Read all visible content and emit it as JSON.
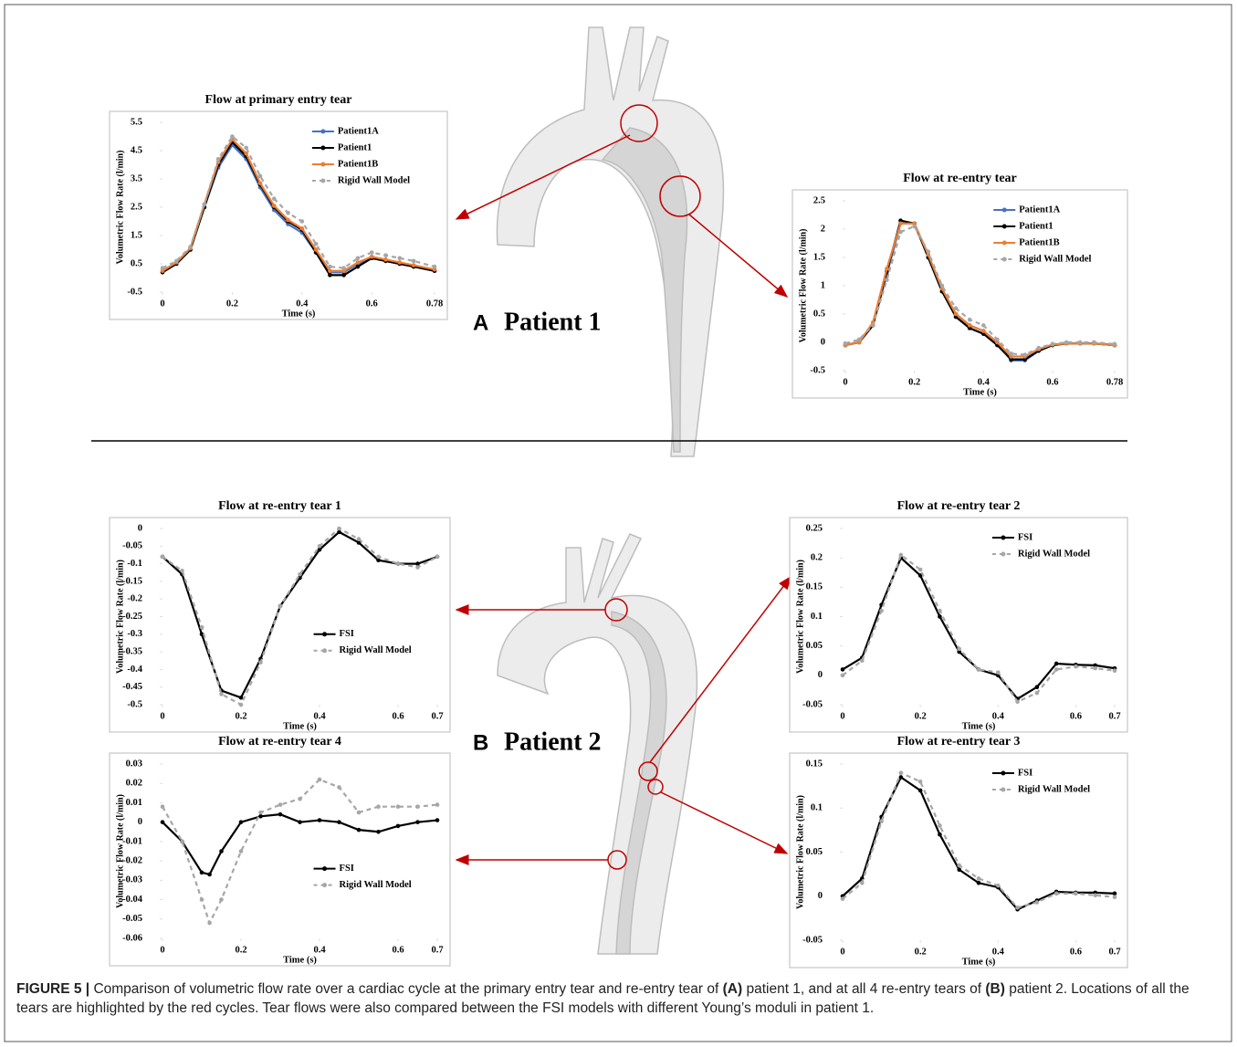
{
  "chart_data": [
    {
      "type": "line",
      "title": "Flow at primary entry tear",
      "xlabel": "Time (s)",
      "ylabel": "Volumetric Flow Rate (l/min)",
      "x": [
        0,
        0.04,
        0.08,
        0.12,
        0.16,
        0.2,
        0.24,
        0.28,
        0.32,
        0.36,
        0.4,
        0.44,
        0.48,
        0.52,
        0.56,
        0.6,
        0.64,
        0.68,
        0.72,
        0.78
      ],
      "series": [
        {
          "name": "Patient1A",
          "color": "#4472c4",
          "dashed": false,
          "values": [
            0.2,
            0.5,
            1.0,
            2.5,
            3.9,
            4.7,
            4.2,
            3.2,
            2.4,
            1.9,
            1.6,
            0.9,
            0.2,
            0.2,
            0.5,
            0.7,
            0.6,
            0.5,
            0.4,
            0.25
          ]
        },
        {
          "name": "Patient1",
          "color": "#000000",
          "dashed": false,
          "values": [
            0.2,
            0.5,
            1.0,
            2.5,
            4.0,
            4.8,
            4.3,
            3.3,
            2.5,
            2.0,
            1.7,
            0.9,
            0.1,
            0.1,
            0.4,
            0.7,
            0.6,
            0.5,
            0.4,
            0.25
          ]
        },
        {
          "name": "Patient1B",
          "color": "#ed7d31",
          "dashed": false,
          "values": [
            0.25,
            0.55,
            1.05,
            2.6,
            4.1,
            4.9,
            4.4,
            3.35,
            2.55,
            2.05,
            1.75,
            1.0,
            0.25,
            0.25,
            0.55,
            0.75,
            0.65,
            0.55,
            0.45,
            0.3
          ]
        },
        {
          "name": "Rigid Wall Model",
          "color": "#a6a6a6",
          "dashed": true,
          "values": [
            0.35,
            0.6,
            1.1,
            2.6,
            4.2,
            5.0,
            4.6,
            3.6,
            2.8,
            2.3,
            2.0,
            1.2,
            0.4,
            0.35,
            0.7,
            0.9,
            0.8,
            0.7,
            0.6,
            0.4
          ]
        }
      ],
      "xlim": [
        0,
        0.78
      ],
      "xticks": [
        0,
        0.2,
        0.4,
        0.6,
        0.78
      ],
      "ylim": [
        -0.5,
        5.5
      ],
      "yticks": [
        -0.5,
        0.5,
        1.5,
        2.5,
        3.5,
        4.5,
        5.5
      ],
      "legend": "upper right"
    },
    {
      "type": "line",
      "title": "Flow at re-entry tear",
      "xlabel": "Time (s)",
      "ylabel": "Volumetric Flow Rate (l/min)",
      "x": [
        0,
        0.04,
        0.08,
        0.12,
        0.16,
        0.2,
        0.24,
        0.28,
        0.32,
        0.36,
        0.4,
        0.44,
        0.48,
        0.52,
        0.56,
        0.6,
        0.64,
        0.68,
        0.72,
        0.78
      ],
      "series": [
        {
          "name": "Patient1A",
          "color": "#4472c4",
          "dashed": false,
          "values": [
            -0.05,
            0.0,
            0.3,
            1.2,
            2.1,
            2.1,
            1.5,
            0.9,
            0.5,
            0.3,
            0.2,
            0.0,
            -0.32,
            -0.32,
            -0.15,
            -0.05,
            -0.02,
            -0.02,
            -0.02,
            -0.05
          ]
        },
        {
          "name": "Patient1",
          "color": "#000000",
          "dashed": false,
          "values": [
            -0.05,
            0.0,
            0.3,
            1.25,
            2.15,
            2.1,
            1.5,
            0.9,
            0.45,
            0.25,
            0.15,
            -0.05,
            -0.3,
            -0.3,
            -0.15,
            -0.05,
            -0.02,
            -0.02,
            -0.02,
            -0.05
          ]
        },
        {
          "name": "Patient1B",
          "color": "#ed7d31",
          "dashed": false,
          "values": [
            -0.05,
            0.0,
            0.35,
            1.3,
            2.1,
            2.1,
            1.55,
            0.95,
            0.5,
            0.3,
            0.2,
            0.0,
            -0.25,
            -0.25,
            -0.12,
            -0.04,
            -0.02,
            -0.02,
            -0.02,
            -0.05
          ]
        },
        {
          "name": "Rigid Wall Model",
          "color": "#a6a6a6",
          "dashed": true,
          "values": [
            -0.02,
            0.05,
            0.3,
            1.1,
            1.95,
            2.05,
            1.6,
            1.0,
            0.6,
            0.4,
            0.3,
            0.05,
            -0.2,
            -0.22,
            -0.1,
            -0.03,
            0.0,
            0.0,
            0.0,
            -0.03
          ]
        }
      ],
      "xlim": [
        0,
        0.78
      ],
      "xticks": [
        0,
        0.2,
        0.4,
        0.6,
        0.78
      ],
      "ylim": [
        -0.5,
        2.5
      ],
      "yticks": [
        -0.5,
        0,
        0.5,
        1,
        1.5,
        2,
        2.5
      ],
      "legend": "upper right"
    },
    {
      "type": "line",
      "title": "Flow at re-entry tear 1",
      "xlabel": "Time (s)",
      "ylabel": "Volumetric Flow Rate (l/min)",
      "x": [
        0,
        0.05,
        0.1,
        0.15,
        0.2,
        0.25,
        0.3,
        0.35,
        0.4,
        0.45,
        0.5,
        0.55,
        0.6,
        0.65,
        0.7
      ],
      "series": [
        {
          "name": "FSI",
          "color": "#000000",
          "dashed": false,
          "values": [
            -0.08,
            -0.13,
            -0.3,
            -0.46,
            -0.48,
            -0.37,
            -0.22,
            -0.14,
            -0.06,
            -0.01,
            -0.04,
            -0.09,
            -0.1,
            -0.1,
            -0.08
          ]
        },
        {
          "name": "Rigid Wall Model",
          "color": "#a6a6a6",
          "dashed": true,
          "values": [
            -0.08,
            -0.12,
            -0.28,
            -0.47,
            -0.5,
            -0.38,
            -0.22,
            -0.13,
            -0.05,
            0.0,
            -0.03,
            -0.08,
            -0.1,
            -0.11,
            -0.08
          ]
        }
      ],
      "xlim": [
        0,
        0.7
      ],
      "xticks": [
        0,
        0.2,
        0.4,
        0.6,
        0.7
      ],
      "ylim": [
        -0.5,
        0
      ],
      "yticks": [
        -0.5,
        -0.45,
        -0.4,
        -0.35,
        -0.3,
        -0.25,
        -0.2,
        -0.15,
        -0.1,
        -0.05,
        0
      ],
      "legend": "lower right"
    },
    {
      "type": "line",
      "title": "Flow at re-entry tear 2",
      "xlabel": "Time (s)",
      "ylabel": "Volumetric Flow Rate (l/min)",
      "x": [
        0,
        0.05,
        0.1,
        0.15,
        0.2,
        0.25,
        0.3,
        0.35,
        0.4,
        0.45,
        0.5,
        0.55,
        0.6,
        0.65,
        0.7
      ],
      "series": [
        {
          "name": "FSI",
          "color": "#000000",
          "dashed": false,
          "values": [
            0.01,
            0.03,
            0.12,
            0.2,
            0.17,
            0.1,
            0.04,
            0.01,
            0.0,
            -0.04,
            -0.02,
            0.02,
            0.018,
            0.017,
            0.012
          ]
        },
        {
          "name": "Rigid Wall Model",
          "color": "#a6a6a6",
          "dashed": true,
          "values": [
            0.0,
            0.025,
            0.11,
            0.205,
            0.18,
            0.11,
            0.045,
            0.01,
            0.005,
            -0.045,
            -0.03,
            0.01,
            0.015,
            0.012,
            0.008
          ]
        }
      ],
      "xlim": [
        0,
        0.7
      ],
      "xticks": [
        0,
        0.2,
        0.4,
        0.6,
        0.7
      ],
      "ylim": [
        -0.05,
        0.25
      ],
      "yticks": [
        -0.05,
        0,
        0.05,
        0.1,
        0.15,
        0.2,
        0.25
      ],
      "legend": "upper right"
    },
    {
      "type": "line",
      "title": "Flow at re-entry tear 4",
      "xlabel": "Time (s)",
      "ylabel": "Volumetric Flow Rate (l/min)",
      "x": [
        0,
        0.05,
        0.1,
        0.12,
        0.15,
        0.2,
        0.25,
        0.3,
        0.35,
        0.4,
        0.45,
        0.5,
        0.55,
        0.6,
        0.65,
        0.7
      ],
      "series": [
        {
          "name": "FSI",
          "color": "#000000",
          "dashed": false,
          "values": [
            0,
            -0.01,
            -0.026,
            -0.027,
            -0.015,
            0.0,
            0.003,
            0.004,
            0.0,
            0.001,
            0.0,
            -0.004,
            -0.005,
            -0.002,
            0.0,
            0.001
          ]
        },
        {
          "name": "Rigid Wall Model",
          "color": "#a6a6a6",
          "dashed": true,
          "values": [
            0.008,
            -0.01,
            -0.04,
            -0.052,
            -0.04,
            -0.015,
            0.005,
            0.009,
            0.012,
            0.022,
            0.018,
            0.005,
            0.008,
            0.008,
            0.008,
            0.009
          ]
        }
      ],
      "xlim": [
        0,
        0.7
      ],
      "xticks": [
        0,
        0.2,
        0.4,
        0.6,
        0.7
      ],
      "ylim": [
        -0.06,
        0.03
      ],
      "yticks": [
        -0.06,
        -0.05,
        -0.04,
        -0.03,
        -0.02,
        -0.01,
        0,
        0.01,
        0.02,
        0.03
      ],
      "legend": "lower right"
    },
    {
      "type": "line",
      "title": "Flow at re-entry tear 3",
      "xlabel": "Time (s)",
      "ylabel": "Volumetric Flow Rate (l/min)",
      "x": [
        0,
        0.05,
        0.1,
        0.15,
        0.2,
        0.25,
        0.3,
        0.35,
        0.4,
        0.45,
        0.5,
        0.55,
        0.6,
        0.65,
        0.7
      ],
      "series": [
        {
          "name": "FSI",
          "color": "#000000",
          "dashed": false,
          "values": [
            0,
            0.02,
            0.09,
            0.135,
            0.12,
            0.07,
            0.03,
            0.015,
            0.01,
            -0.015,
            -0.005,
            0.005,
            0.004,
            0.004,
            0.003
          ]
        },
        {
          "name": "Rigid Wall Model",
          "color": "#a6a6a6",
          "dashed": true,
          "values": [
            -0.003,
            0.015,
            0.085,
            0.14,
            0.13,
            0.08,
            0.035,
            0.02,
            0.012,
            -0.013,
            -0.007,
            0.003,
            0.003,
            0.001,
            -0.001
          ]
        }
      ],
      "xlim": [
        0,
        0.7
      ],
      "xticks": [
        0,
        0.2,
        0.4,
        0.6,
        0.7
      ],
      "ylim": [
        -0.05,
        0.15
      ],
      "yticks": [
        -0.05,
        0,
        0.05,
        0.1,
        0.15
      ],
      "legend": "upper right"
    }
  ],
  "panel_a": {
    "letter": "A",
    "label": "Patient 1"
  },
  "panel_b": {
    "letter": "B",
    "label": "Patient 2"
  },
  "caption": [
    "FIGURE 5 |",
    " Comparison of volumetric flow rate over a cardiac cycle at the primary entry tear and re-entry tear of ",
    "(A)",
    " patient 1, and at all 4 re-entry tears of ",
    "(B)",
    " patient 2. Locations of all the tears are highlighted by the red cycles. Tear flows were also compared between the FSI models with different Young’s moduli in patient 1."
  ]
}
